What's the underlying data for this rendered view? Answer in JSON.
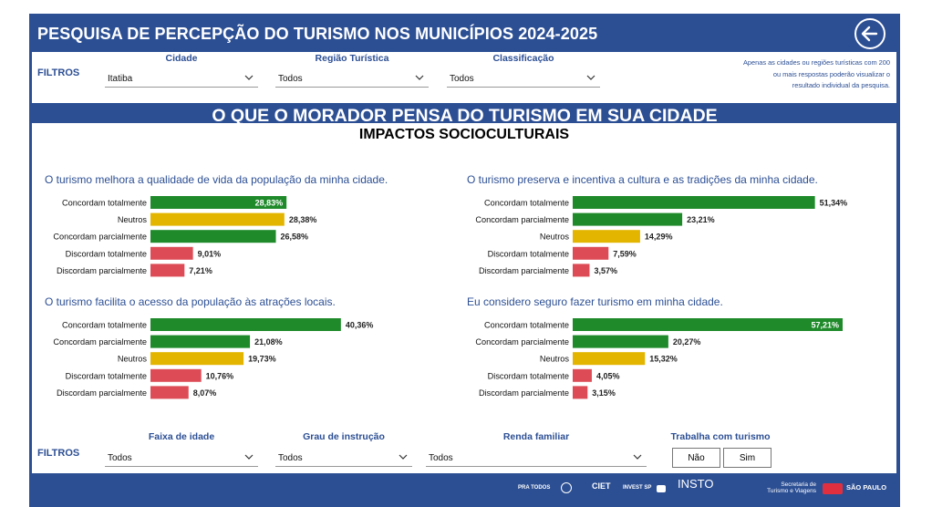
{
  "header": {
    "title": "PESQUISA DE PERCEPÇÃO DO TURISMO NOS MUNICÍPIOS 2024-2025"
  },
  "top_filters": {
    "label": "FILTROS",
    "cidade": {
      "caption": "Cidade",
      "value": "Itatiba"
    },
    "regiao": {
      "caption": "Região Turística",
      "value": "Todos"
    },
    "classificacao": {
      "caption": "Classificação",
      "value": "Todos"
    },
    "note_lines": [
      "Apenas as cidades ou regiões turísticas com 200",
      "ou mais respostas poderão visualizar o",
      "resultado individual da pesquisa."
    ]
  },
  "banner": "O QUE O MORADOR PENSA DO TURISMO EM SUA CIDADE",
  "section_title": "IMPACTOS SOCIOCULTURAIS",
  "colors": {
    "concordam": "#1e8a2a",
    "neutros": "#e3b500",
    "discordam": "#dd4c56",
    "brand": "#2c4f94"
  },
  "chart_data": [
    {
      "type": "bar",
      "title": "O turismo melhora a qualidade de vida da população da minha cidade.",
      "categories": [
        "Concordam totalmente",
        "Neutros",
        "Concordam parcialmente",
        "Discordam totalmente",
        "Discordam parcialmente"
      ],
      "values": [
        28.83,
        28.38,
        26.58,
        9.01,
        7.21
      ],
      "labels": [
        "28,83%",
        "28,38%",
        "26,58%",
        "9,01%",
        "7,21%"
      ],
      "groups": [
        "concordam",
        "neutros",
        "concordam",
        "discordam",
        "discordam"
      ]
    },
    {
      "type": "bar",
      "title": "O turismo preserva e incentiva a cultura e as tradições da minha cidade.",
      "categories": [
        "Concordam totalmente",
        "Concordam parcialmente",
        "Neutros",
        "Discordam totalmente",
        "Discordam parcialmente"
      ],
      "values": [
        51.34,
        23.21,
        14.29,
        7.59,
        3.57
      ],
      "labels": [
        "51,34%",
        "23,21%",
        "14,29%",
        "7,59%",
        "3,57%"
      ],
      "groups": [
        "concordam",
        "concordam",
        "neutros",
        "discordam",
        "discordam"
      ]
    },
    {
      "type": "bar",
      "title": "O turismo facilita o acesso da população às atrações locais.",
      "categories": [
        "Concordam totalmente",
        "Concordam parcialmente",
        "Neutros",
        "Discordam totalmente",
        "Discordam parcialmente"
      ],
      "values": [
        40.36,
        21.08,
        19.73,
        10.76,
        8.07
      ],
      "labels": [
        "40,36%",
        "21,08%",
        "19,73%",
        "10,76%",
        "8,07%"
      ],
      "groups": [
        "concordam",
        "concordam",
        "neutros",
        "discordam",
        "discordam"
      ]
    },
    {
      "type": "bar",
      "title": "Eu considero seguro fazer turismo em minha cidade.",
      "categories": [
        "Concordam totalmente",
        "Concordam parcialmente",
        "Neutros",
        "Discordam totalmente",
        "Discordam parcialmente"
      ],
      "values": [
        57.21,
        20.27,
        15.32,
        4.05,
        3.15
      ],
      "labels": [
        "57,21%",
        "20,27%",
        "15,32%",
        "4,05%",
        "3,15%"
      ],
      "groups": [
        "concordam",
        "concordam",
        "neutros",
        "discordam",
        "discordam"
      ]
    }
  ],
  "bottom_filters": {
    "label": "FILTROS",
    "faixa": {
      "caption": "Faixa de idade",
      "value": "Todos"
    },
    "grau": {
      "caption": "Grau de instrução",
      "value": "Todos"
    },
    "renda": {
      "caption": "Renda familiar",
      "value": "Todos"
    },
    "trabalha": {
      "caption": "Trabalha com turismo",
      "options": [
        "Não",
        "Sim"
      ]
    }
  },
  "footer_logos": [
    "PRA TODOS",
    "CIET",
    "INVEST SP",
    "INSTO",
    "Secretaria de Turismo e Viagens",
    "SÃO PAULO"
  ]
}
